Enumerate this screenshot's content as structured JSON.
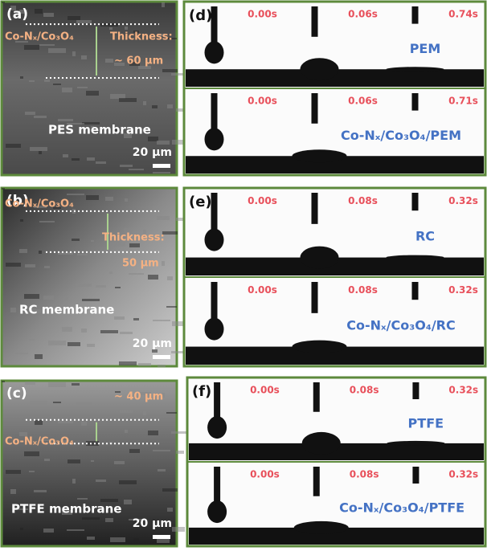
{
  "sem_panels": [
    {
      "label": "(a)",
      "material": "Co-Nₓ/Co₃O₄",
      "thickness_title": "Thickness:",
      "thickness": "~ 60 µm",
      "membrane": "PES membrane",
      "scale": "20 µm"
    },
    {
      "label": "(b)",
      "material": "Co-Nₓ/Co₃O₄",
      "thickness_title": "Thickness:",
      "thickness": "50 µm",
      "membrane": "RC membrane",
      "scale": "20 µm"
    },
    {
      "label": "(c)",
      "material": "Co-Nₓ/Co₃O₄",
      "thickness": "~ 40 µm",
      "membrane": "PTFE membrane",
      "scale": "20 µm"
    }
  ],
  "contact_panels": [
    {
      "label": "(d)",
      "rows": [
        {
          "times": [
            "0.00s",
            "0.06s",
            "0.74s"
          ],
          "name": "PEM"
        },
        {
          "times": [
            "0.00s",
            "0.06s",
            "0.71s"
          ],
          "name": "Co-Nₓ/Co₃O₄/PEM"
        }
      ]
    },
    {
      "label": "(e)",
      "rows": [
        {
          "times": [
            "0.00s",
            "0.08s",
            "0.32s"
          ],
          "name": "RC"
        },
        {
          "times": [
            "0.00s",
            "0.08s",
            "0.32s"
          ],
          "name": "Co-Nₓ/Co₃O₄/RC"
        }
      ]
    },
    {
      "label": "(f)",
      "rows": [
        {
          "times": [
            "0.00s",
            "0.08s",
            "0.32s"
          ],
          "name": "PTFE"
        },
        {
          "times": [
            "0.00s",
            "0.08s",
            "0.32s"
          ],
          "name": "Co-Nₓ/Co₃O₄/PTFE"
        }
      ]
    }
  ]
}
